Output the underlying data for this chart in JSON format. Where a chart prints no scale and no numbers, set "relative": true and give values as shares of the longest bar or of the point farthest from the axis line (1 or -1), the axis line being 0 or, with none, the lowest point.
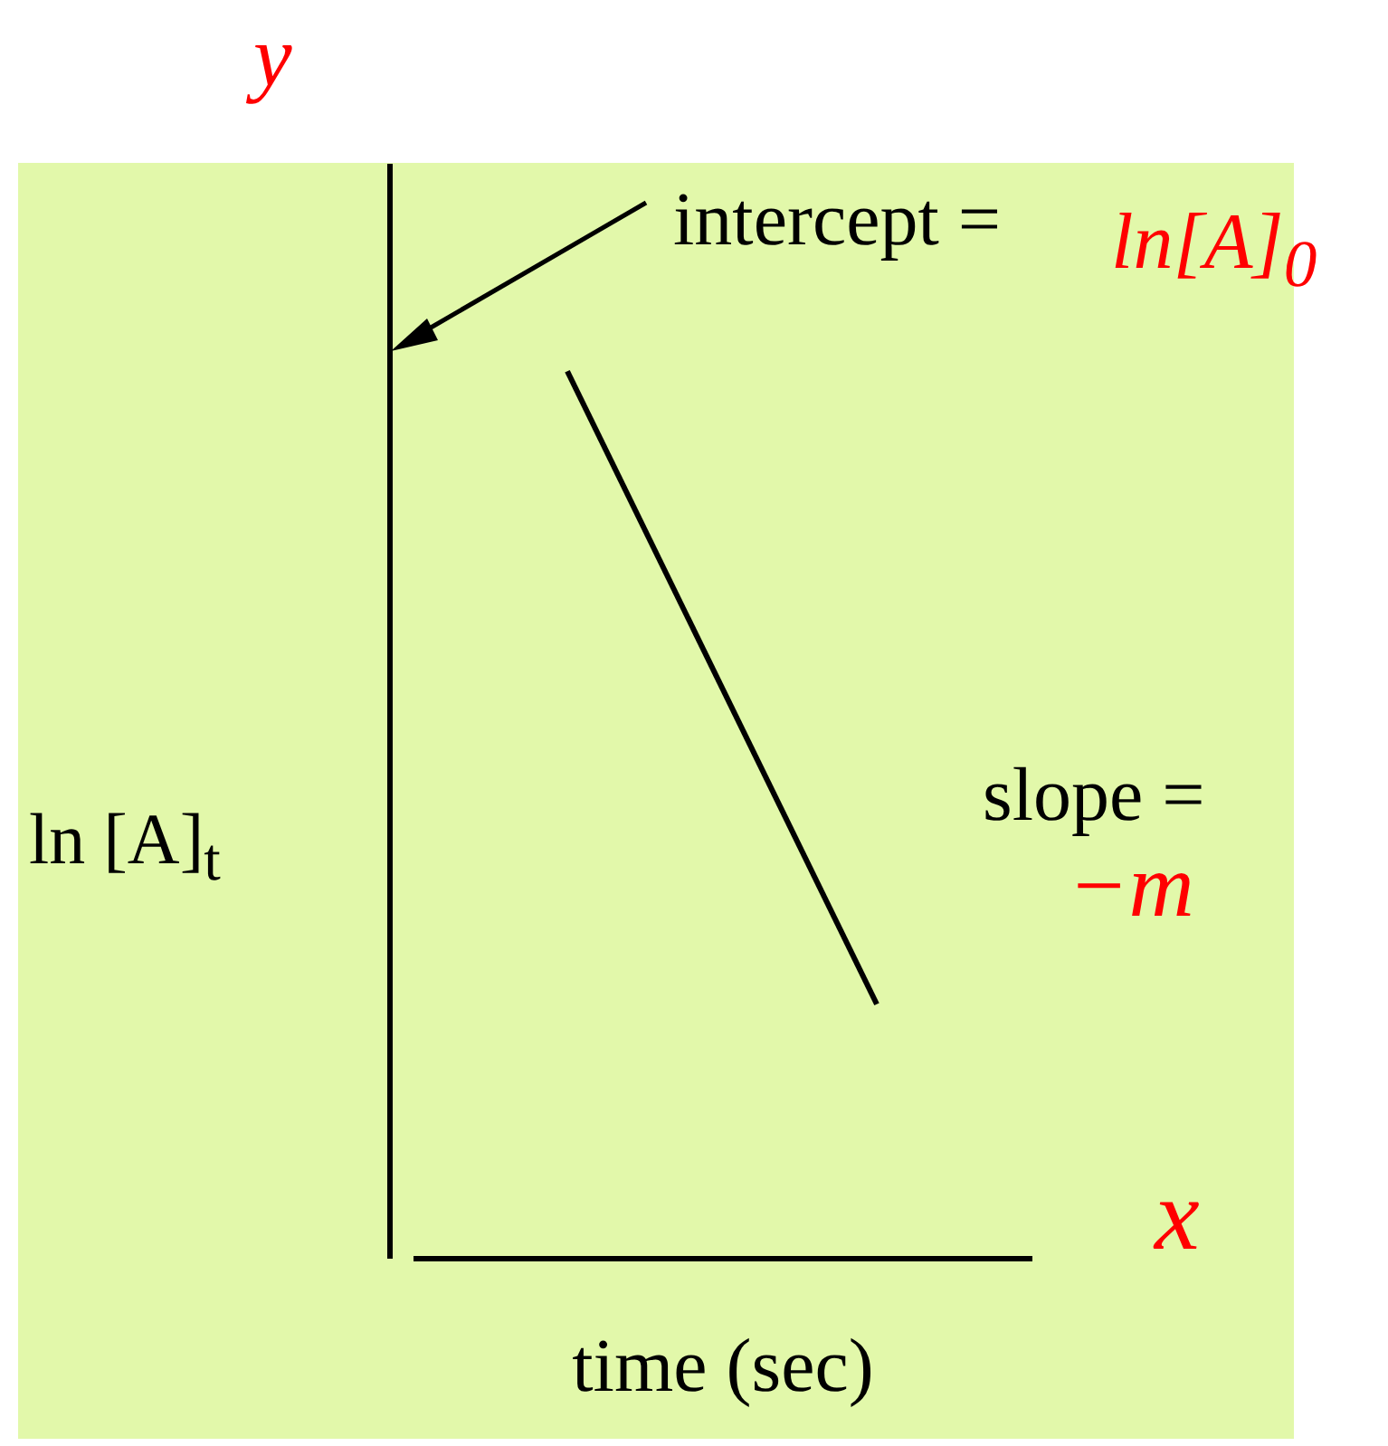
{
  "chart_data": {
    "type": "line",
    "relative": true,
    "xlabel": "time (sec)",
    "ylabel": "ln [A]$_{t}$",
    "categories": [
      null,
      null
    ],
    "series": [
      {
        "color": "#000000",
        "values": [
          1,
          0.286
        ]
      }
    ],
    "annotations": [
      "intercept =",
      "slope =",
      "y",
      "x",
      "ln[A]$_{0}$",
      "−m"
    ],
    "legend": false,
    "grid": false
  }
}
